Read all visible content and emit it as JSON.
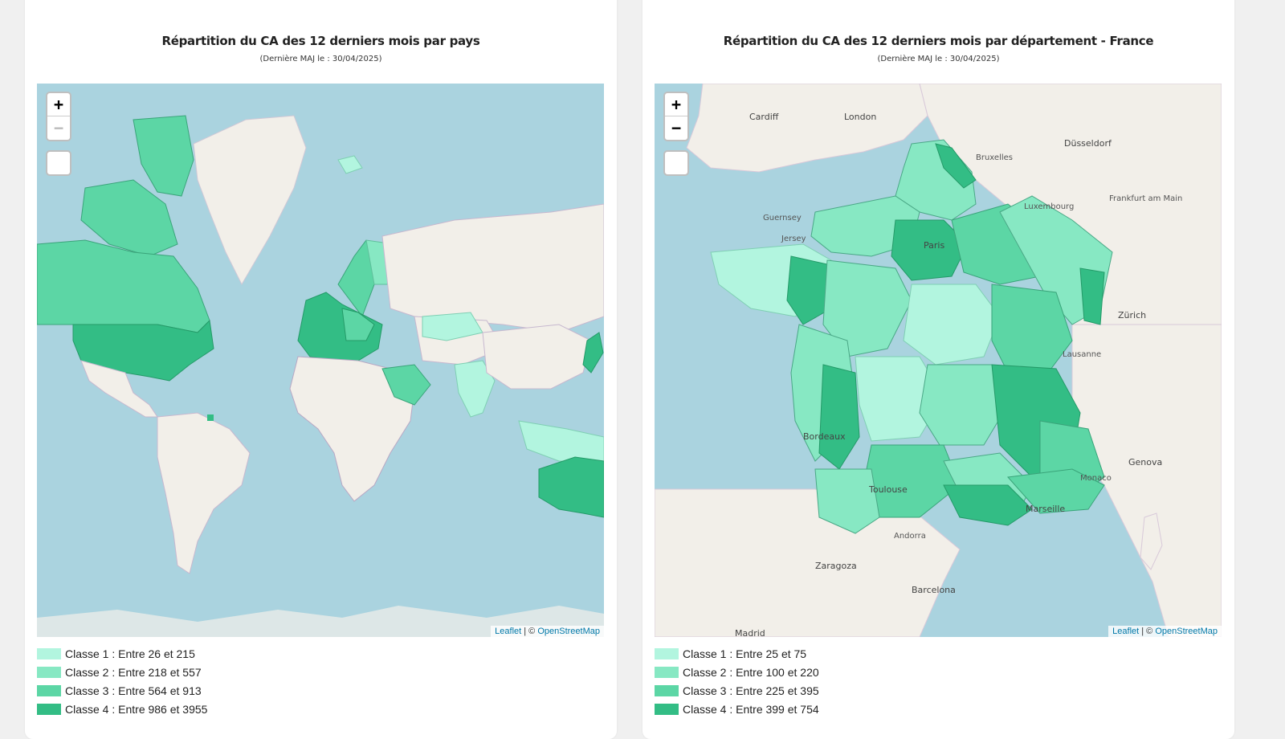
{
  "left_card": {
    "title": "Répartition du CA des 12 derniers mois par pays",
    "subtitle": "(Dernière MAJ le : 30/04/2025)",
    "zoom_in": "+",
    "zoom_out": "−",
    "attribution_leaflet": "Leaflet",
    "attribution_sep": " | © ",
    "attribution_osm": "OpenStreetMap",
    "legend": [
      {
        "label": "Classe 1 : Entre 26 et 215",
        "color": "#b2f5df"
      },
      {
        "label": "Classe 2 : Entre 218 et 557",
        "color": "#87e8c3"
      },
      {
        "label": "Classe 3 : Entre 564 et 913",
        "color": "#5cd6a5"
      },
      {
        "label": "Classe 4 : Entre 986 et 3955",
        "color": "#33bd85"
      }
    ]
  },
  "right_card": {
    "title": "Répartition du CA des 12 derniers mois par département - France",
    "subtitle": "(Dernière MAJ le : 30/04/2025)",
    "zoom_in": "+",
    "zoom_out": "−",
    "attribution_leaflet": "Leaflet",
    "attribution_sep": " | © ",
    "attribution_osm": "OpenStreetMap",
    "legend": [
      {
        "label": "Classe 1 : Entre 25 et 75",
        "color": "#b2f5df"
      },
      {
        "label": "Classe 2 : Entre 100 et 220",
        "color": "#87e8c3"
      },
      {
        "label": "Classe 3 : Entre 225 et 395",
        "color": "#5cd6a5"
      },
      {
        "label": "Classe 4 : Entre 399 et 754",
        "color": "#33bd85"
      }
    ],
    "map_labels": [
      "London",
      "Cardiff",
      "Paris",
      "Bordeaux",
      "Toulouse",
      "Marseille",
      "Bruxelles",
      "Zürich",
      "Genova",
      "Madrid",
      "Barcelona",
      "Zaragoza",
      "Düsseldorf",
      "Frankfurt am Main",
      "Luxembourg",
      "Monaco",
      "Guernsey",
      "Jersey",
      "Lausanne",
      "Andorra"
    ]
  },
  "colors": {
    "water": "#aad3df",
    "land": "#f2efe9",
    "border": "#9b8fa6"
  }
}
